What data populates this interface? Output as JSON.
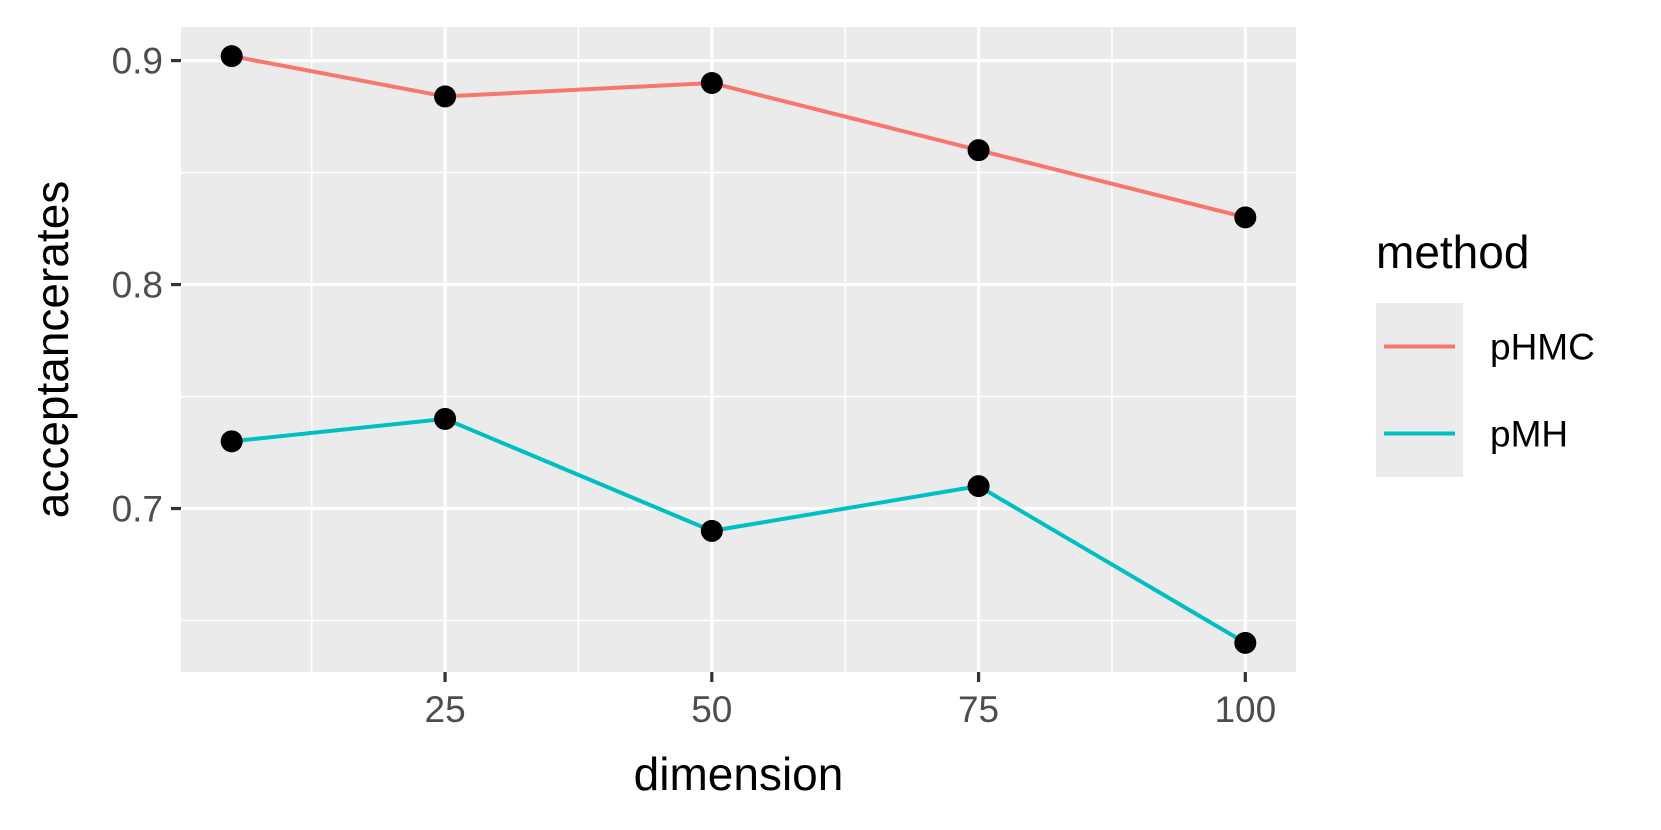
{
  "chart_data": {
    "type": "line",
    "xlabel": "dimension",
    "ylabel": "acceptancerates",
    "x": [
      5,
      25,
      50,
      75,
      100
    ],
    "x_ticks": [
      25,
      50,
      75,
      100
    ],
    "x_tick_labels": [
      "25",
      "50",
      "75",
      "100"
    ],
    "y_ticks": [
      0.7,
      0.8,
      0.9
    ],
    "y_tick_labels": [
      "0.7",
      "0.8",
      "0.9"
    ],
    "xlim": [
      0.25,
      104.75
    ],
    "ylim": [
      0.627,
      0.915
    ],
    "grid": true,
    "legend": {
      "title": "method",
      "position": "right"
    },
    "series": [
      {
        "name": "pHMC",
        "color": "#F8766D",
        "values": [
          0.902,
          0.884,
          0.89,
          0.86,
          0.83
        ]
      },
      {
        "name": "pMH",
        "color": "#00BFC4",
        "values": [
          0.73,
          0.74,
          0.69,
          0.71,
          0.64
        ]
      }
    ],
    "marker_color": "#000000",
    "panel_background": "#EBEBEB",
    "grid_color": "#FFFFFF"
  }
}
